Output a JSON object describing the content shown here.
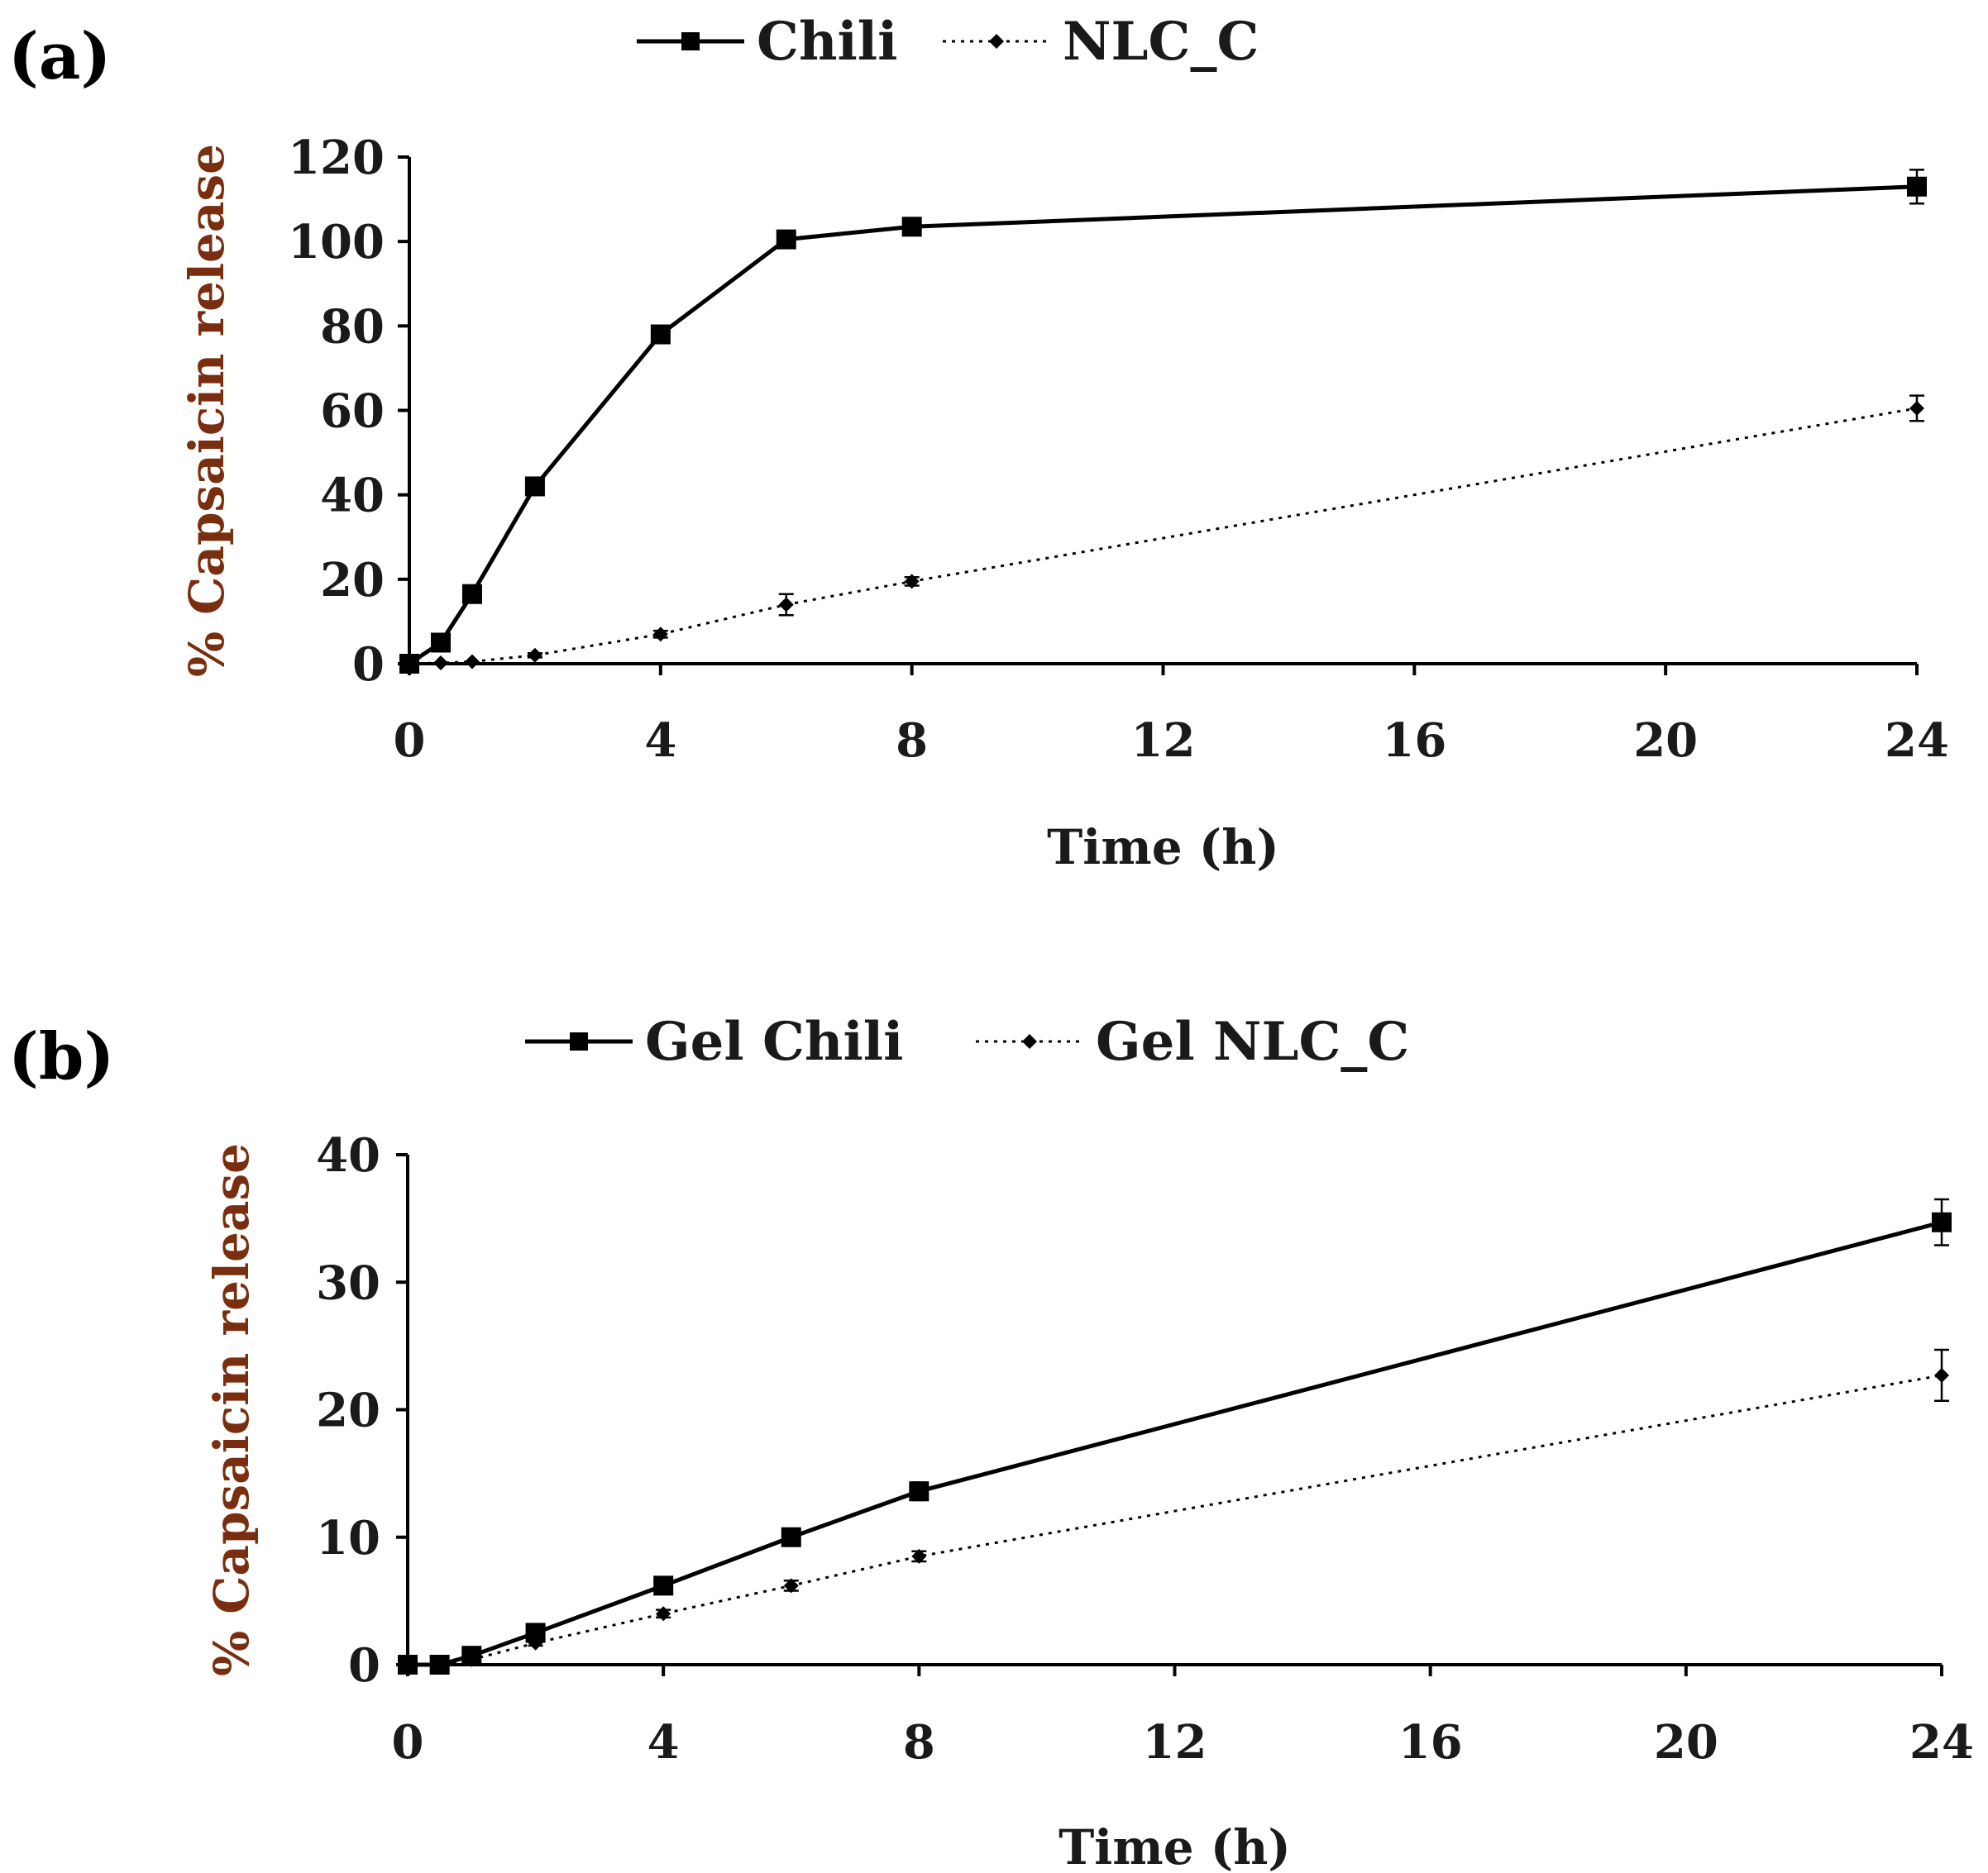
{
  "colors": {
    "axis": "#000000",
    "series": "#000000",
    "ylabel": "#7a2e10",
    "background": "#ffffff"
  },
  "chart_data": [
    {
      "panel_label": "(a)",
      "type": "line",
      "title": "",
      "xlabel": "Time (h)",
      "ylabel": "% Capsaicin release",
      "xlim": [
        0,
        24
      ],
      "ylim": [
        0,
        120
      ],
      "xticks": [
        0,
        4,
        8,
        12,
        16,
        20,
        24
      ],
      "yticks": [
        0,
        20,
        40,
        60,
        80,
        100,
        120
      ],
      "grid": false,
      "legend_position": "top",
      "series": [
        {
          "name": "Chili",
          "marker": "square",
          "line": "solid",
          "x": [
            0,
            0.5,
            1,
            2,
            4,
            6,
            8,
            24
          ],
          "y": [
            0,
            5,
            16.5,
            42,
            78,
            100.5,
            103.5,
            113
          ],
          "err": [
            0,
            0.5,
            1,
            1.5,
            2,
            1.2,
            1.2,
            4
          ]
        },
        {
          "name": "NLC_C",
          "marker": "diamond",
          "line": "dotted",
          "x": [
            0,
            0.5,
            1,
            2,
            4,
            6,
            8,
            24
          ],
          "y": [
            0,
            0.2,
            0.5,
            2,
            7,
            14,
            19.5,
            60.5
          ],
          "err": [
            0,
            0,
            0,
            0.5,
            0.8,
            2.5,
            1,
            3
          ]
        }
      ]
    },
    {
      "panel_label": "(b)",
      "type": "line",
      "title": "",
      "xlabel": "Time (h)",
      "ylabel": "% Capsaicin release",
      "xlim": [
        0,
        24
      ],
      "ylim": [
        0,
        40
      ],
      "xticks": [
        0,
        4,
        8,
        12,
        16,
        20,
        24
      ],
      "yticks": [
        0,
        10,
        20,
        30,
        40
      ],
      "grid": false,
      "legend_position": "top",
      "series": [
        {
          "name": "Gel Chili",
          "marker": "square",
          "line": "solid",
          "x": [
            0,
            0.5,
            1,
            2,
            4,
            6,
            8,
            24
          ],
          "y": [
            0,
            0,
            0.7,
            2.5,
            6.2,
            10,
            13.6,
            34.7
          ],
          "err": [
            0,
            0,
            0.1,
            0.3,
            0.3,
            0.5,
            0.7,
            1.8
          ]
        },
        {
          "name": "Gel NLC_C",
          "marker": "diamond",
          "line": "dotted",
          "x": [
            0,
            0.5,
            1,
            2,
            4,
            6,
            8,
            24
          ],
          "y": [
            0,
            0,
            0.4,
            1.7,
            4,
            6.2,
            8.5,
            22.7
          ],
          "err": [
            0,
            0,
            0.1,
            0.2,
            0.3,
            0.4,
            0.4,
            2
          ]
        }
      ]
    }
  ]
}
